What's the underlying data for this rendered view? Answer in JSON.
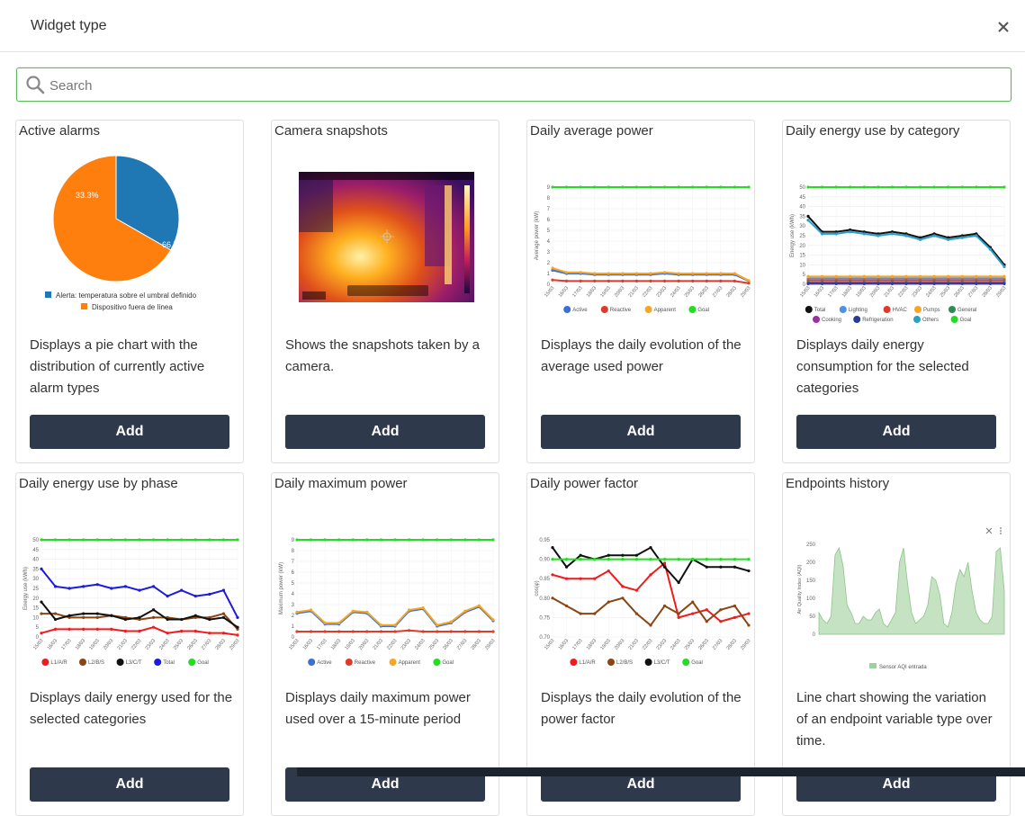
{
  "modal": {
    "title": "Widget type",
    "search_placeholder": "Search"
  },
  "colors": {
    "button": "#2e3a4b",
    "search_border": "#5cb85c"
  },
  "cards": [
    {
      "title": "Active alarms",
      "description": "Displays a pie chart with the distribution of currently active alarm types",
      "add_label": "Add"
    },
    {
      "title": "Camera snapshots",
      "description": "Shows the snapshots taken by a camera.",
      "add_label": "Add"
    },
    {
      "title": "Daily average power",
      "description": "Displays the daily evolution of the average used power",
      "add_label": "Add"
    },
    {
      "title": "Daily energy use by category",
      "description": "Displays daily energy consumption for the selected categories",
      "add_label": "Add"
    },
    {
      "title": "Daily energy use by phase",
      "description": "Displays daily energy used for the selected categories",
      "add_label": "Add"
    },
    {
      "title": "Daily maximum power",
      "description": "Displays daily maximum power used over a 15-minute period",
      "add_label": "Add"
    },
    {
      "title": "Daily power factor",
      "description": "Displays the daily evolution of the power factor",
      "add_label": "Add"
    },
    {
      "title": "Endpoints history",
      "description": "Line chart showing the variation of an endpoint variable type over time.",
      "add_label": "Add"
    }
  ],
  "chart_data": [
    {
      "type": "pie",
      "labels": [
        "Alerta: temperatura sobre el umbral definido",
        "Dispositivo fuera de línea"
      ],
      "values": [
        33.3,
        66.7
      ],
      "value_labels": [
        "33.3%",
        "66.7%"
      ],
      "colors": [
        "#1f77b4",
        "#ff7f0e"
      ]
    },
    {
      "type": "line",
      "x": [
        "15/03",
        "16/03",
        "17/03",
        "18/03",
        "19/03",
        "20/03",
        "21/03",
        "22/03",
        "23/03",
        "24/03",
        "25/03",
        "26/03",
        "27/03",
        "28/03",
        "29/03"
      ],
      "ylabel": "Average power (kW)",
      "ylim": [
        0,
        9
      ],
      "yticks": [
        "9",
        "8",
        "7",
        "6",
        "5",
        "4",
        "3",
        "2",
        "1",
        "0"
      ],
      "series": [
        {
          "name": "Active",
          "color": "#3a6fd8",
          "values": [
            1.3,
            1.0,
            1.0,
            0.9,
            0.9,
            0.9,
            0.9,
            0.9,
            1.0,
            0.9,
            0.9,
            0.9,
            0.9,
            0.9,
            0.3
          ]
        },
        {
          "name": "Reactive",
          "color": "#e03a2a",
          "values": [
            0.4,
            0.3,
            0.3,
            0.3,
            0.3,
            0.3,
            0.3,
            0.3,
            0.3,
            0.3,
            0.3,
            0.3,
            0.3,
            0.3,
            0.1
          ]
        },
        {
          "name": "Apparent",
          "color": "#f5a623",
          "values": [
            1.5,
            1.1,
            1.1,
            1.0,
            1.0,
            1.0,
            1.0,
            1.0,
            1.1,
            1.0,
            1.0,
            1.0,
            1.0,
            1.0,
            0.35
          ]
        },
        {
          "name": "Goal",
          "color": "#22dd22",
          "values": [
            9,
            9,
            9,
            9,
            9,
            9,
            9,
            9,
            9,
            9,
            9,
            9,
            9,
            9,
            9
          ]
        }
      ]
    },
    {
      "type": "line",
      "x": [
        "15/03",
        "16/03",
        "17/03",
        "18/03",
        "19/03",
        "20/03",
        "21/03",
        "22/03",
        "23/03",
        "24/03",
        "25/03",
        "26/03",
        "27/03",
        "28/03",
        "29/03"
      ],
      "ylabel": "Energy use (kWh)",
      "ylim": [
        0,
        50
      ],
      "yticks": [
        "50",
        "45",
        "40",
        "35",
        "30",
        "25",
        "20",
        "15",
        "10",
        "5",
        "0"
      ],
      "series": [
        {
          "name": "Total",
          "color": "#111111",
          "values": [
            35,
            27,
            27,
            28,
            27,
            26,
            27,
            26,
            24,
            26,
            24,
            25,
            26,
            19,
            10
          ]
        },
        {
          "name": "Lighting",
          "color": "#4f8fe8",
          "values": [
            3,
            3,
            3,
            3,
            3,
            3,
            3,
            3,
            3,
            3,
            3,
            3,
            3,
            3,
            3
          ]
        },
        {
          "name": "HVAC",
          "color": "#e03a2a",
          "values": [
            2,
            2,
            2,
            2,
            2,
            2,
            2,
            2,
            2,
            2,
            2,
            2,
            2,
            2,
            2
          ]
        },
        {
          "name": "Pumps",
          "color": "#f5a623",
          "values": [
            4,
            4,
            4,
            4,
            4,
            4,
            4,
            4,
            4,
            4,
            4,
            4,
            4,
            4,
            4
          ]
        },
        {
          "name": "General",
          "color": "#2e8b57",
          "values": [
            1,
            1,
            1,
            1,
            1,
            1,
            1,
            1,
            1,
            1,
            1,
            1,
            1,
            1,
            1
          ]
        },
        {
          "name": "Cooking",
          "color": "#9b30a0",
          "values": [
            0.5,
            0.5,
            0.5,
            0.5,
            0.5,
            0.5,
            0.5,
            0.5,
            0.5,
            0.5,
            0.5,
            0.5,
            0.5,
            0.5,
            0.5
          ]
        },
        {
          "name": "Refrigeration",
          "color": "#2a3a9a",
          "values": [
            0.3,
            0.3,
            0.3,
            0.3,
            0.3,
            0.3,
            0.3,
            0.3,
            0.3,
            0.3,
            0.3,
            0.3,
            0.3,
            0.3,
            0.3
          ]
        },
        {
          "name": "Others",
          "color": "#2aa0c8",
          "values": [
            33,
            26,
            26,
            27,
            26,
            25,
            26,
            25,
            23,
            25,
            23,
            24,
            25,
            18,
            9
          ]
        },
        {
          "name": "Goal",
          "color": "#22dd22",
          "values": [
            50,
            50,
            50,
            50,
            50,
            50,
            50,
            50,
            50,
            50,
            50,
            50,
            50,
            50,
            50
          ]
        }
      ]
    },
    {
      "type": "line",
      "x": [
        "15/03",
        "16/03",
        "17/03",
        "18/03",
        "19/03",
        "20/03",
        "21/03",
        "22/03",
        "23/03",
        "24/03",
        "25/03",
        "26/03",
        "27/03",
        "28/03",
        "29/03"
      ],
      "ylabel": "Energy use (kWh)",
      "ylim": [
        0,
        50
      ],
      "yticks": [
        "50",
        "45",
        "40",
        "35",
        "30",
        "25",
        "20",
        "15",
        "10",
        "5",
        "0"
      ],
      "series": [
        {
          "name": "L1/A/R",
          "color": "#ee1c1c",
          "values": [
            2,
            4,
            4,
            4,
            4,
            4,
            3,
            3,
            5,
            2,
            3,
            3,
            2,
            2,
            1
          ]
        },
        {
          "name": "L2/B/S",
          "color": "#8b4513",
          "values": [
            12,
            12,
            10,
            10,
            10,
            11,
            10,
            9,
            10,
            10,
            9,
            10,
            10,
            12,
            4
          ]
        },
        {
          "name": "L3/C/T",
          "color": "#111111",
          "values": [
            18,
            9,
            11,
            12,
            12,
            11,
            9,
            10,
            14,
            9,
            9,
            11,
            9,
            10,
            5
          ]
        },
        {
          "name": "Total",
          "color": "#1a1ae0",
          "values": [
            35,
            26,
            25,
            26,
            27,
            25,
            26,
            24,
            26,
            21,
            24,
            21,
            22,
            24,
            10
          ]
        },
        {
          "name": "Goal",
          "color": "#22dd22",
          "values": [
            50,
            50,
            50,
            50,
            50,
            50,
            50,
            50,
            50,
            50,
            50,
            50,
            50,
            50,
            50
          ]
        }
      ]
    },
    {
      "type": "line",
      "x": [
        "15/03",
        "16/03",
        "17/03",
        "18/03",
        "19/03",
        "20/03",
        "21/03",
        "22/03",
        "23/03",
        "24/03",
        "25/03",
        "26/03",
        "27/03",
        "28/03",
        "29/03"
      ],
      "ylabel": "Maximum power (kW)",
      "ylim": [
        0,
        9
      ],
      "yticks": [
        "9",
        "8",
        "7",
        "6",
        "5",
        "4",
        "3",
        "2",
        "1",
        "0"
      ],
      "series": [
        {
          "name": "Active",
          "color": "#3a6fd8",
          "values": [
            2.2,
            2.4,
            1.2,
            1.2,
            2.3,
            2.2,
            1.0,
            1.0,
            2.4,
            2.6,
            1.0,
            1.3,
            2.3,
            2.8,
            1.5
          ]
        },
        {
          "name": "Reactive",
          "color": "#e03a2a",
          "values": [
            0.5,
            0.5,
            0.5,
            0.5,
            0.5,
            0.5,
            0.5,
            0.5,
            0.6,
            0.5,
            0.5,
            0.5,
            0.5,
            0.5,
            0.5
          ]
        },
        {
          "name": "Apparent",
          "color": "#f5a623",
          "values": [
            2.3,
            2.5,
            1.3,
            1.3,
            2.4,
            2.3,
            1.1,
            1.1,
            2.5,
            2.7,
            1.1,
            1.4,
            2.4,
            2.9,
            1.6
          ]
        },
        {
          "name": "Goal",
          "color": "#22dd22",
          "values": [
            9,
            9,
            9,
            9,
            9,
            9,
            9,
            9,
            9,
            9,
            9,
            9,
            9,
            9,
            9
          ]
        }
      ]
    },
    {
      "type": "line",
      "x": [
        "15/03",
        "16/03",
        "17/03",
        "18/03",
        "19/03",
        "20/03",
        "21/03",
        "22/03",
        "23/03",
        "24/03",
        "25/03",
        "26/03",
        "27/03",
        "28/03",
        "29/03"
      ],
      "ylabel": "cos(φ)",
      "ylim": [
        0.7,
        0.95
      ],
      "yticks": [
        "0.95",
        "0.90",
        "0.85",
        "0.80",
        "0.75",
        "0.70"
      ],
      "series": [
        {
          "name": "L1/A/R",
          "color": "#ee1c1c",
          "values": [
            0.86,
            0.85,
            0.85,
            0.85,
            0.87,
            0.83,
            0.82,
            0.86,
            0.89,
            0.75,
            0.76,
            0.77,
            0.74,
            0.75,
            0.76
          ]
        },
        {
          "name": "L2/B/S",
          "color": "#8b4513",
          "values": [
            0.8,
            0.78,
            0.76,
            0.76,
            0.79,
            0.8,
            0.76,
            0.73,
            0.78,
            0.76,
            0.79,
            0.74,
            0.77,
            0.78,
            0.73
          ]
        },
        {
          "name": "L3/C/T",
          "color": "#111111",
          "values": [
            0.93,
            0.88,
            0.91,
            0.9,
            0.91,
            0.91,
            0.91,
            0.93,
            0.88,
            0.84,
            0.9,
            0.88,
            0.88,
            0.88,
            0.87
          ]
        },
        {
          "name": "Goal",
          "color": "#22dd22",
          "values": [
            0.9,
            0.9,
            0.9,
            0.9,
            0.9,
            0.9,
            0.9,
            0.9,
            0.9,
            0.9,
            0.9,
            0.9,
            0.9,
            0.9,
            0.9
          ]
        }
      ]
    },
    {
      "type": "area",
      "ylabel": "Air Quality Index (AQI)",
      "ylim": [
        0,
        250
      ],
      "yticks": [
        "250",
        "200",
        "150",
        "100",
        "50",
        "0"
      ],
      "series": [
        {
          "name": "Sensor AQI entrada",
          "color": "#9ed19b",
          "values": [
            60,
            40,
            30,
            50,
            220,
            240,
            190,
            80,
            60,
            30,
            30,
            50,
            40,
            40,
            60,
            70,
            30,
            20,
            40,
            60,
            200,
            240,
            140,
            60,
            30,
            40,
            50,
            80,
            160,
            150,
            110,
            30,
            20,
            60,
            140,
            180,
            160,
            200,
            120,
            60,
            40,
            30,
            30,
            50,
            230,
            240,
            120
          ]
        }
      ]
    }
  ]
}
